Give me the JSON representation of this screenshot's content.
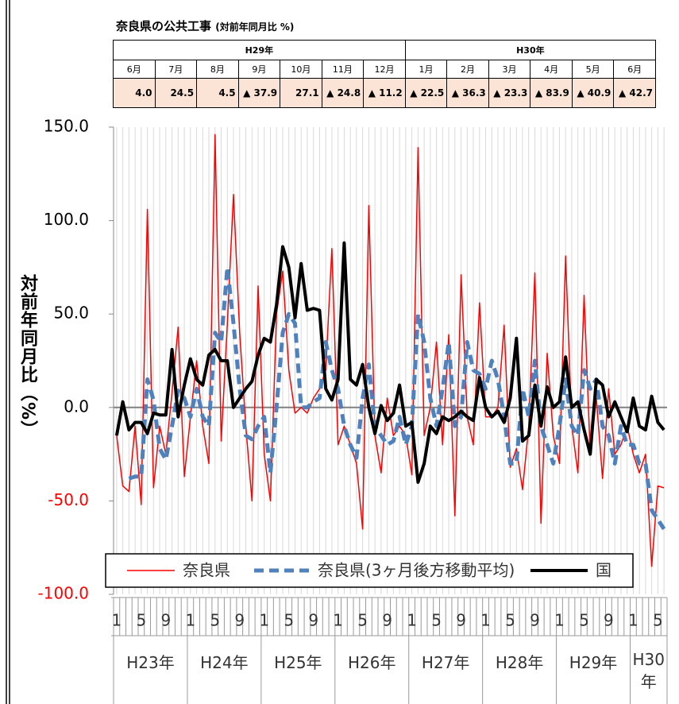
{
  "table": {
    "title": "奈良県の公共工事",
    "subtitle": "(対前年同月比 %)",
    "groups": [
      {
        "label": "H29年",
        "months": [
          "6月",
          "7月",
          "8月",
          "9月",
          "10月",
          "11月",
          "12月"
        ],
        "values": [
          "4.0",
          "24.5",
          "4.5",
          "▲ 37.9",
          "27.1",
          "▲ 24.8",
          "▲ 11.2"
        ]
      },
      {
        "label": "H30年",
        "months": [
          "1月",
          "2月",
          "3月",
          "4月",
          "5月",
          "6月"
        ],
        "values": [
          "▲ 22.5",
          "▲ 36.3",
          "▲ 23.3",
          "▲ 83.9",
          "▲ 40.9",
          "▲ 42.7"
        ]
      }
    ]
  },
  "chart_data": {
    "type": "line",
    "y_label": "対前年同月比（%）",
    "categories": [
      "1",
      null,
      null,
      null,
      "5",
      null,
      null,
      null,
      "9",
      null,
      null,
      null,
      "1",
      null,
      null,
      null,
      "5",
      null,
      null,
      null,
      "9",
      null,
      null,
      null,
      "1",
      null,
      null,
      null,
      "5",
      null,
      null,
      null,
      "9",
      null,
      null,
      null,
      "1",
      null,
      null,
      null,
      "5",
      null,
      null,
      null,
      "9",
      null,
      null,
      null,
      "1",
      null,
      null,
      null,
      "5",
      null,
      null,
      null,
      "9",
      null,
      null,
      null,
      "1",
      null,
      null,
      null,
      "5",
      null,
      null,
      null,
      "9",
      null,
      null,
      null,
      "1",
      null,
      null,
      null,
      "5",
      null,
      null,
      null,
      "9",
      null,
      null,
      null,
      "1",
      null,
      null,
      null,
      "5",
      null
    ],
    "year_labels": [
      "H23年",
      "H24年",
      "H25年",
      "H26年",
      "H27年",
      "H28年",
      "H29年",
      "H30年"
    ],
    "ylim": [
      -100,
      150
    ],
    "yticks": [
      {
        "value": -100,
        "label": "-100.0"
      },
      {
        "value": -50,
        "label": "-50.0"
      },
      {
        "value": 0,
        "label": "0.0"
      },
      {
        "value": 50,
        "label": "50.0"
      },
      {
        "value": 100,
        "label": "100.0"
      },
      {
        "value": 150,
        "label": "150.0"
      }
    ],
    "grid": true,
    "series": [
      {
        "name": "奈良県",
        "color": "#ff0000",
        "values": [
          -15,
          -42,
          -45,
          -10,
          -52,
          106,
          -43,
          -10,
          -25,
          8,
          43,
          -37,
          -5,
          25,
          -10,
          -30,
          146,
          -18,
          45,
          114,
          40,
          -10,
          -50,
          65,
          -25,
          -50,
          50,
          73,
          20,
          -3,
          0,
          -3,
          5,
          10,
          20,
          85,
          -20,
          -10,
          -20,
          -30,
          -65,
          108,
          -15,
          -35,
          5,
          -15,
          -10,
          -15,
          -36,
          139,
          -15,
          0,
          35,
          -20,
          39,
          -58,
          71,
          -5,
          -20,
          56,
          -5,
          -5,
          0,
          44,
          -32,
          -22,
          -44,
          -10,
          72,
          -62,
          29,
          -15,
          -30,
          81,
          -10,
          -35,
          60,
          -25,
          5,
          -38,
          10,
          -25,
          -20,
          -10,
          -25,
          -35,
          -25,
          -85,
          -42,
          -43
        ]
      },
      {
        "name": "奈良県(3ヶ月後方移動平均)",
        "color": "#4f81bd",
        "values": [
          null,
          null,
          -38,
          -37,
          -37,
          15,
          4,
          -22,
          -28,
          -10,
          9,
          5,
          -5,
          10,
          -5,
          -10,
          40,
          35,
          75,
          45,
          10,
          -15,
          -17,
          -10,
          -5,
          -35,
          0,
          40,
          50,
          45,
          0,
          0,
          3,
          5,
          35,
          20,
          10,
          -10,
          -20,
          -27,
          5,
          23,
          -10,
          -15,
          -20,
          -18,
          -5,
          -20,
          -10,
          50,
          35,
          5,
          -10,
          10,
          35,
          -10,
          -5,
          35,
          20,
          18,
          10,
          25,
          15,
          -5,
          -30,
          -30,
          10,
          -5,
          25,
          -10,
          -20,
          -30,
          -10,
          15,
          -10,
          -15,
          20,
          10,
          15,
          -10,
          -15,
          -30,
          -10,
          -20,
          -20,
          -30,
          -30,
          -55,
          -60,
          -65
        ]
      },
      {
        "name": "国",
        "color": "#000000",
        "values": [
          -15,
          3,
          -12,
          -8,
          -8,
          -14,
          -3,
          -4,
          -4,
          31,
          -5,
          12,
          26,
          15,
          12,
          28,
          31,
          25,
          25,
          0,
          5,
          10,
          14,
          28,
          37,
          35,
          55,
          86,
          75,
          48,
          77,
          52,
          53,
          52,
          10,
          4,
          15,
          88,
          15,
          12,
          23,
          0,
          -14,
          1,
          -7,
          -3,
          12,
          -10,
          -8,
          -40,
          -30,
          -10,
          -14,
          -5,
          -7,
          -5,
          -2,
          -5,
          -7,
          16,
          0,
          -5,
          -2,
          -8,
          5,
          37,
          -18,
          -15,
          12,
          -10,
          11,
          0,
          3,
          27,
          0,
          3,
          -12,
          -25,
          15,
          12,
          -5,
          3,
          -5,
          -13,
          5,
          -10,
          -12,
          6,
          -8,
          -12
        ]
      }
    ]
  }
}
